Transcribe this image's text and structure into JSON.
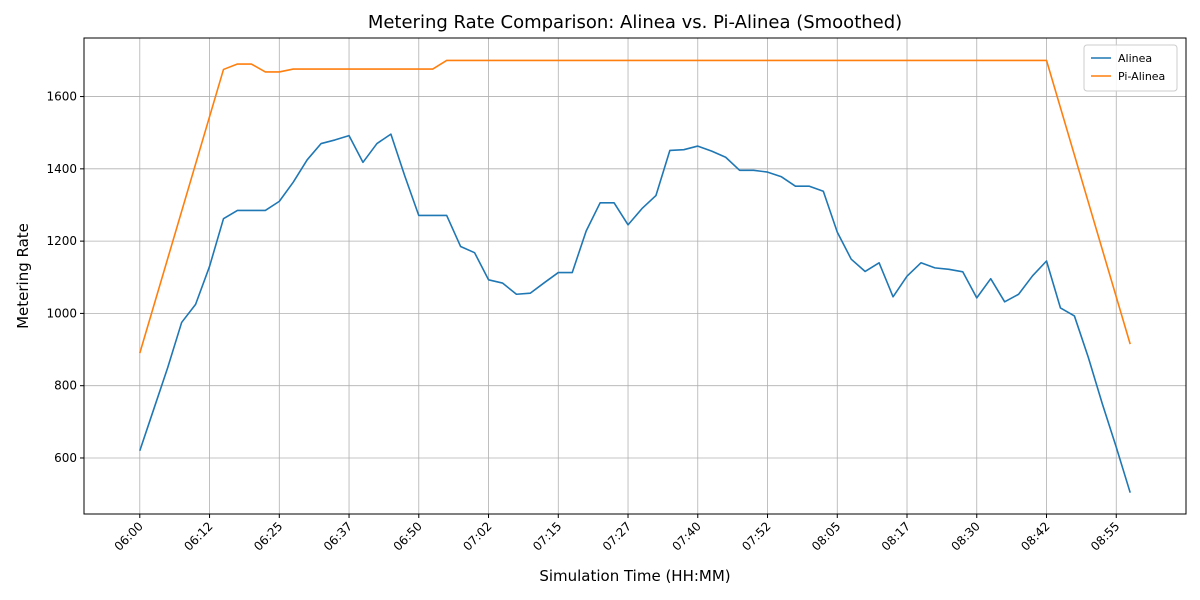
{
  "chart_data": {
    "type": "line",
    "title": "Metering Rate Comparison: Alinea vs. Pi-Alinea (Smoothed)",
    "xlabel": "Simulation Time (HH:MM)",
    "ylabel": "Metering Rate",
    "x_tick_labels": [
      "06:00",
      "06:12",
      "06:25",
      "06:37",
      "06:50",
      "07:02",
      "07:15",
      "07:27",
      "07:40",
      "07:52",
      "08:05",
      "08:17",
      "08:30",
      "08:42",
      "08:55"
    ],
    "y_ticks": [
      600,
      800,
      1000,
      1200,
      1400,
      1600
    ],
    "xlim": [
      -4,
      75
    ],
    "ylim": [
      445,
      1762
    ],
    "grid": true,
    "legend_position": "top-right",
    "series": [
      {
        "name": "Alinea",
        "color": "#1f77b4",
        "x": [
          0,
          1,
          2,
          3,
          4,
          5,
          6,
          7,
          8,
          9,
          10,
          11,
          12,
          13,
          14,
          15,
          16,
          17,
          18,
          19,
          20,
          21,
          22,
          23,
          24,
          25,
          26,
          27,
          28,
          29,
          30,
          31,
          32,
          33,
          34,
          35,
          36,
          37,
          38,
          39,
          40,
          41,
          42,
          43,
          44,
          45,
          46,
          47,
          48,
          49,
          50,
          51,
          52,
          53,
          54,
          55,
          56,
          57,
          58,
          59,
          60,
          61,
          62,
          63,
          64,
          65,
          66,
          67,
          68,
          69,
          70,
          71
        ],
        "values": [
          620,
          735,
          850,
          975,
          1025,
          1130,
          1262,
          1285,
          1285,
          1285,
          1310,
          1363,
          1425,
          1470,
          1480,
          1492,
          1418,
          1470,
          1496,
          1380,
          1271,
          1271,
          1271,
          1185,
          1168,
          1093,
          1084,
          1053,
          1056,
          1085,
          1113,
          1113,
          1228,
          1306,
          1306,
          1245,
          1290,
          1326,
          1451,
          1453,
          1463,
          1449,
          1432,
          1396,
          1396,
          1391,
          1378,
          1352,
          1352,
          1338,
          1225,
          1150,
          1116,
          1140,
          1046,
          1103,
          1140,
          1126,
          1122,
          1115,
          1043,
          1096,
          1032,
          1053,
          1104,
          1145,
          1015,
          993,
          878,
          750,
          630,
          504
        ]
      },
      {
        "name": "Pi-Alinea",
        "color": "#ff7f0e",
        "x": [
          0,
          6,
          7,
          8,
          9,
          10,
          11,
          12,
          13,
          14,
          15,
          16,
          17,
          18,
          19,
          20,
          21,
          22,
          65,
          71
        ],
        "values": [
          890,
          1675,
          1690,
          1690,
          1668,
          1668,
          1676,
          1676,
          1676,
          1676,
          1676,
          1676,
          1676,
          1676,
          1676,
          1676,
          1676,
          1700,
          1700,
          915
        ]
      }
    ]
  }
}
